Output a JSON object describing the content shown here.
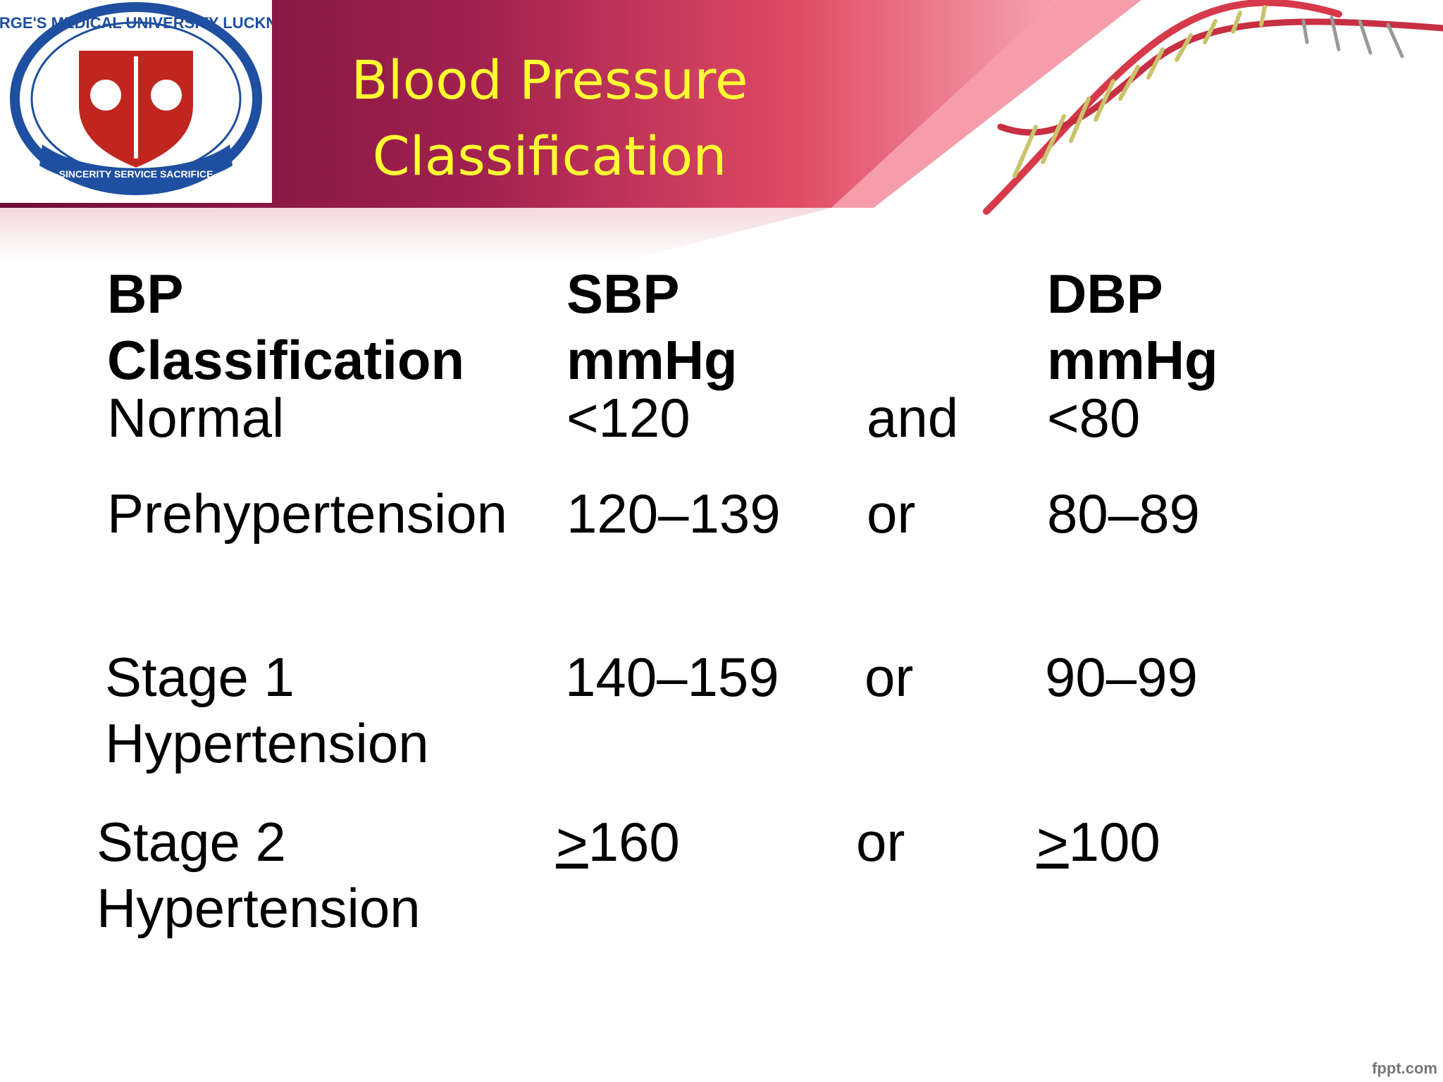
{
  "title": {
    "line1": "Blood Pressure",
    "line2": "Classification"
  },
  "logo": {
    "text_top": "KING GEORGE'S MEDICAL UNIVERSITY LUCKNOW INDIA",
    "text_ribbon": "SINCERITY SERVICE SACRIFICE",
    "icon": "caduceus-emblem-icon"
  },
  "table": {
    "headers": {
      "classification": [
        "BP",
        "Classification"
      ],
      "sbp": [
        "SBP",
        "mmHg"
      ],
      "dbp": [
        "DBP",
        "mmHg"
      ]
    },
    "rows": [
      {
        "classification": [
          "Normal"
        ],
        "sbp_sym": "",
        "sbp": "<120",
        "conj": "and",
        "dbp_sym": "",
        "dbp": "<80"
      },
      {
        "classification": [
          "Prehypertension"
        ],
        "sbp_sym": "",
        "sbp": "120–139",
        "conj": "or",
        "dbp_sym": "",
        "dbp": "80–89"
      },
      {
        "classification": [
          "Stage 1",
          "Hypertension"
        ],
        "sbp_sym": "",
        "sbp": "140–159",
        "conj": "or",
        "dbp_sym": "",
        "dbp": "90–99"
      },
      {
        "classification": [
          "Stage 2",
          "Hypertension"
        ],
        "sbp_sym": ">",
        "sbp": "160",
        "conj": "or",
        "dbp_sym": ">",
        "dbp": "100"
      }
    ]
  },
  "footer": {
    "watermark": "fppt.com"
  },
  "colors": {
    "header_dark": "#7a0f3c",
    "header_light": "#e8586e",
    "title": "#ffff33",
    "dna_strand": "#d63a4a"
  }
}
